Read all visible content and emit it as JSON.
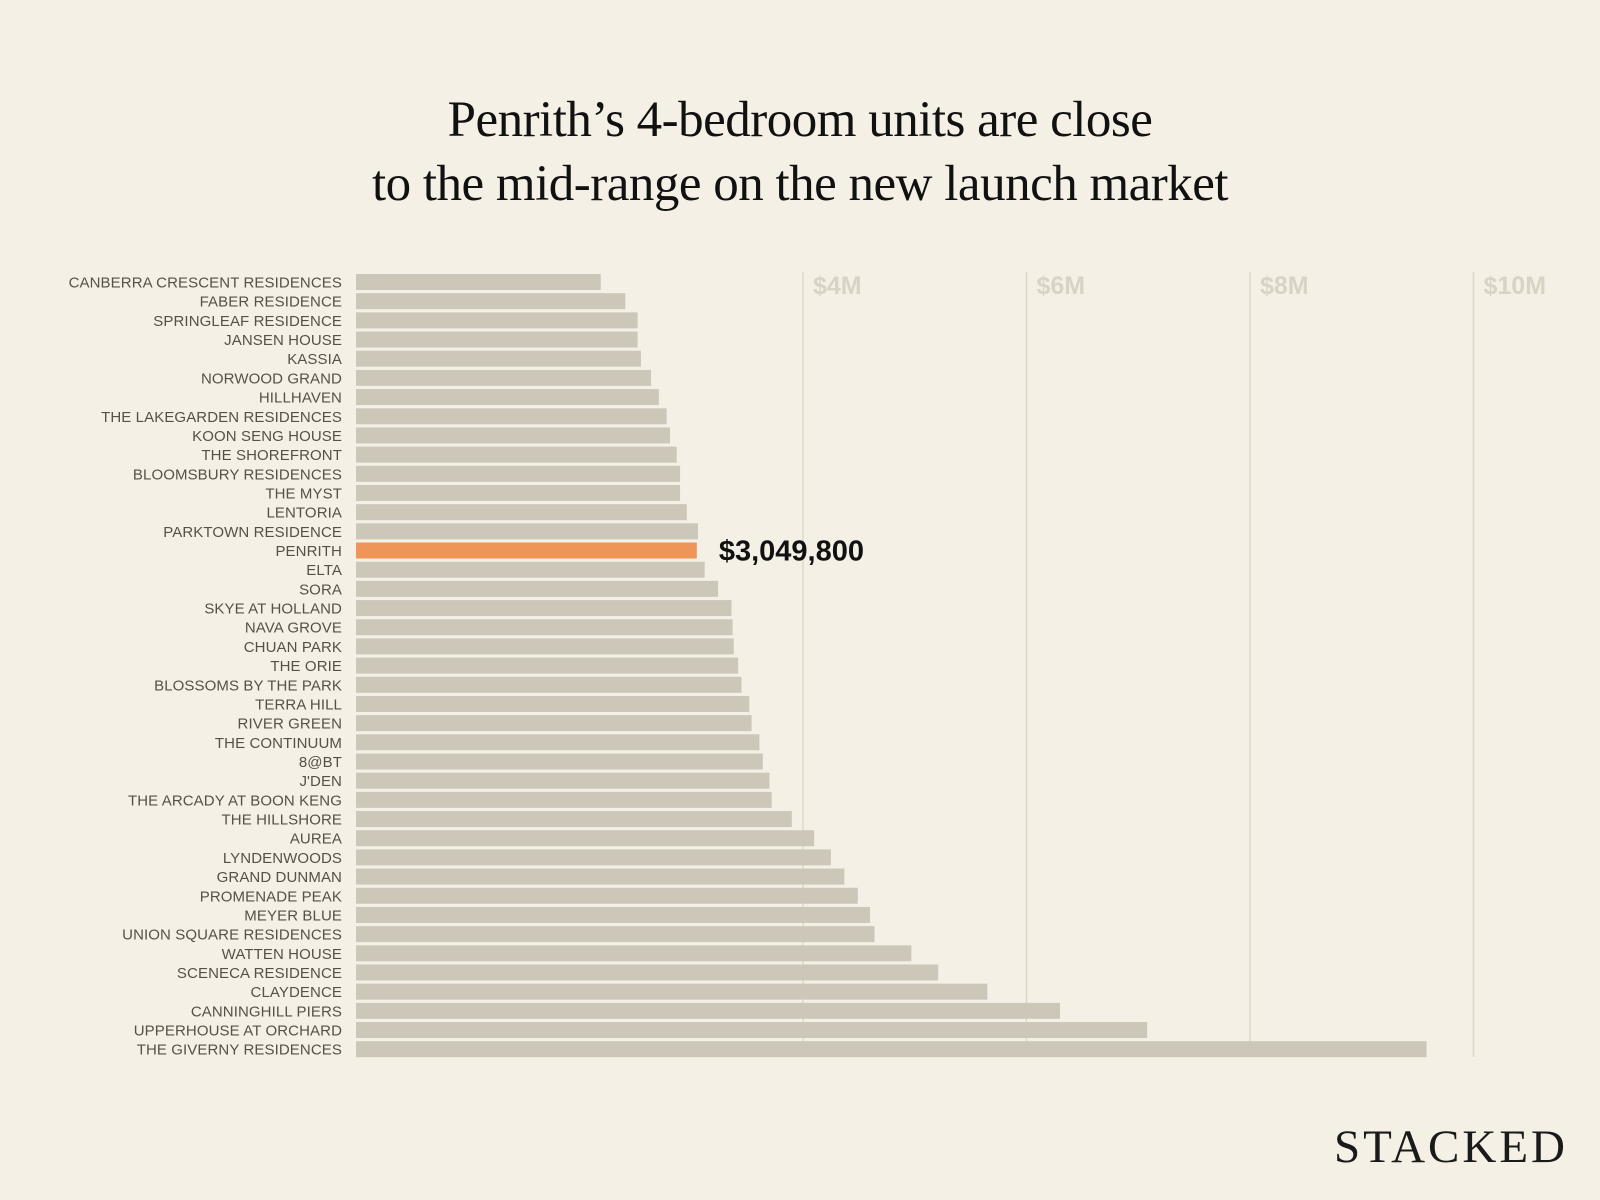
{
  "title_line1": "Penrith’s 4-bedroom units are close",
  "title_line2": "to the mid-range on the new launch market",
  "brand": "STACKED",
  "colors": {
    "background": "#f5f0e5",
    "bar": "#cdc7ba",
    "highlight": "#f0955a",
    "gridline": "#ddd7ca",
    "tick_text": "#d9d3c6"
  },
  "chart_data": {
    "type": "bar",
    "orientation": "horizontal",
    "title": "Penrith’s 4-bedroom units are close to the mid-range on the new launch market",
    "xlabel": "",
    "ylabel": "",
    "xlim": [
      0,
      10500000
    ],
    "grid": true,
    "ticks": [
      {
        "value": 4000000,
        "label": "$4M"
      },
      {
        "value": 6000000,
        "label": "$6M"
      },
      {
        "value": 8000000,
        "label": "$8M"
      },
      {
        "value": 10000000,
        "label": "$10M"
      }
    ],
    "highlight": "PENRITH",
    "data_labels": [
      {
        "category": "PENRITH",
        "label": "$3,049,800"
      }
    ],
    "categories": [
      "CANBERRA CRESCENT RESIDENCES",
      "FABER RESIDENCE",
      "SPRINGLEAF RESIDENCE",
      "JANSEN HOUSE",
      "KASSIA",
      "NORWOOD GRAND",
      "HILLHAVEN",
      "THE LAKEGARDEN RESIDENCES",
      "KOON SENG HOUSE",
      "THE SHOREFRONT",
      "BLOOMSBURY RESIDENCES",
      "THE MYST",
      "LENTORIA",
      "PARKTOWN RESIDENCE",
      "PENRITH",
      "ELTA",
      "SORA",
      "SKYE AT HOLLAND",
      "NAVA GROVE",
      "CHUAN PARK",
      "THE ORIE",
      "BLOSSOMS BY THE PARK",
      "TERRA HILL",
      "RIVER GREEN",
      "THE CONTINUUM",
      "8@BT",
      "J'DEN",
      "THE ARCADY AT BOON KENG",
      "THE HILLSHORE",
      "AUREA",
      "LYNDENWOODS",
      "GRAND DUNMAN",
      "PROMENADE PEAK",
      "MEYER BLUE",
      "UNION SQUARE RESIDENCES",
      "WATTEN HOUSE",
      "SCENECA RESIDENCE",
      "CLAYDENCE",
      "CANNINGHILL PIERS",
      "UPPERHOUSE AT ORCHARD",
      "THE GIVERNY RESIDENCES"
    ],
    "values": [
      2190000,
      2410000,
      2520000,
      2520000,
      2550000,
      2640000,
      2710000,
      2780000,
      2810000,
      2870000,
      2900000,
      2900000,
      2960000,
      3060000,
      3049800,
      3120000,
      3240000,
      3360000,
      3370000,
      3380000,
      3420000,
      3450000,
      3520000,
      3540000,
      3610000,
      3640000,
      3700000,
      3720000,
      3900000,
      4100000,
      4250000,
      4370000,
      4490000,
      4600000,
      4640000,
      4970000,
      5210000,
      5650000,
      6300000,
      7080000,
      9580000
    ]
  }
}
